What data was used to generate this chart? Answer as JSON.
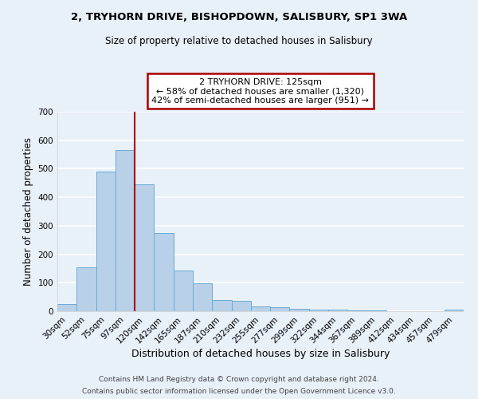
{
  "title": "2, TRYHORN DRIVE, BISHOPDOWN, SALISBURY, SP1 3WA",
  "subtitle": "Size of property relative to detached houses in Salisbury",
  "xlabel": "Distribution of detached houses by size in Salisbury",
  "ylabel": "Number of detached properties",
  "bar_color": "#b8d0e8",
  "bar_edge_color": "#6aabd2",
  "background_color": "#e8f0f8",
  "grid_color": "#ffffff",
  "bin_labels": [
    "30sqm",
    "52sqm",
    "75sqm",
    "97sqm",
    "120sqm",
    "142sqm",
    "165sqm",
    "187sqm",
    "210sqm",
    "232sqm",
    "255sqm",
    "277sqm",
    "299sqm",
    "322sqm",
    "344sqm",
    "367sqm",
    "389sqm",
    "412sqm",
    "434sqm",
    "457sqm",
    "479sqm"
  ],
  "bar_values": [
    25,
    155,
    490,
    565,
    445,
    275,
    143,
    97,
    38,
    36,
    18,
    14,
    9,
    6,
    5,
    3,
    3,
    0,
    0,
    0,
    5
  ],
  "vline_x": 4,
  "vline_color": "#aa0000",
  "ylim": [
    0,
    700
  ],
  "yticks": [
    0,
    100,
    200,
    300,
    400,
    500,
    600,
    700
  ],
  "annotation_title": "2 TRYHORN DRIVE: 125sqm",
  "annotation_line1": "← 58% of detached houses are smaller (1,320)",
  "annotation_line2": "42% of semi-detached houses are larger (951) →",
  "annotation_box_color": "#ffffff",
  "annotation_edge_color": "#aa0000",
  "footer1": "Contains HM Land Registry data © Crown copyright and database right 2024.",
  "footer2": "Contains public sector information licensed under the Open Government Licence v3.0."
}
